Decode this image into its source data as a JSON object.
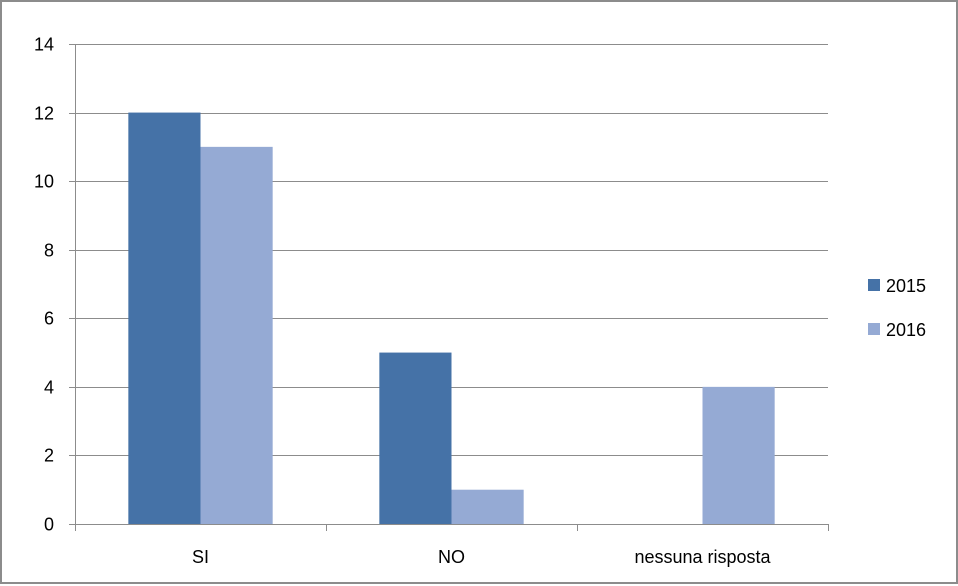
{
  "chart_data": {
    "type": "bar",
    "categories": [
      "SI",
      "NO",
      "nessuna risposta"
    ],
    "series": [
      {
        "name": "2015",
        "values": [
          12,
          5,
          0
        ],
        "color": "#4572a7"
      },
      {
        "name": "2016",
        "values": [
          11,
          1,
          4
        ],
        "color": "#95aad4"
      }
    ],
    "ylim": [
      0,
      14
    ],
    "y_ticks": [
      "0",
      "2",
      "4",
      "6",
      "8",
      "10",
      "12",
      "14"
    ],
    "grid": true,
    "legend_position": "right",
    "title": "",
    "xlabel": "",
    "ylabel": ""
  }
}
